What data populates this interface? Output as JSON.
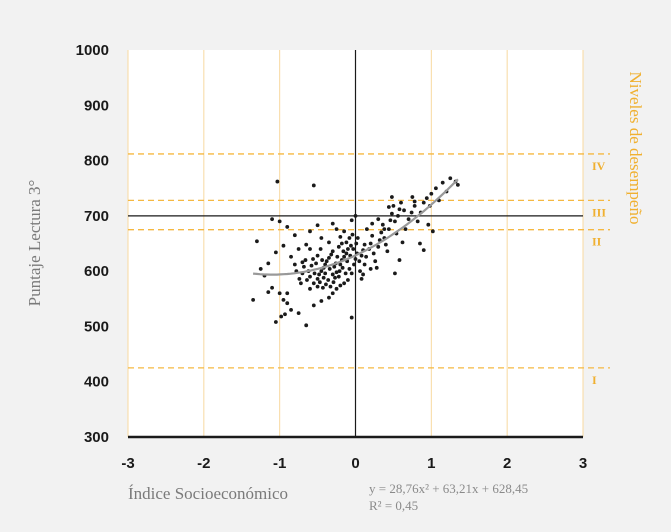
{
  "chart_data": {
    "type": "scatter",
    "xlabel": "Índice Socioeconómico",
    "ylabel": "Puntaje Lectura 3°",
    "right_label": "Niveles de desempeño",
    "xlim": [
      -3,
      3
    ],
    "ylim": [
      300,
      1000
    ],
    "x_ticks": [
      -3,
      -2,
      -1,
      0,
      1,
      2,
      3
    ],
    "y_ticks": [
      300,
      400,
      500,
      600,
      700,
      800,
      900,
      1000
    ],
    "x_tick_labels": [
      "-3",
      "-2",
      "-1",
      "0",
      "1",
      "2",
      "3"
    ],
    "y_tick_labels": [
      "300",
      "400",
      "500",
      "600",
      "700",
      "800",
      "900",
      "1000"
    ],
    "reference_lines": {
      "x": 0,
      "y": 700
    },
    "levels": [
      {
        "label": "IV",
        "y": 812
      },
      {
        "label": "III",
        "y": 728
      },
      {
        "label": "II",
        "y": 675
      },
      {
        "label": "I",
        "y": 425
      }
    ],
    "trendline": {
      "type": "polynomial",
      "coefficients": [
        28.76,
        63.21,
        628.45
      ],
      "x_range": [
        -1.35,
        1.35
      ],
      "equation": "y = 28,76x² + 63,21x + 628,45",
      "r_squared": "R² = 0,45"
    },
    "grid": {
      "vertical": true,
      "horizontal": false
    },
    "colors": {
      "points": "#1a1a1a",
      "trend": "#999999",
      "levels": "#f5b841",
      "grid": "#f8d9a0",
      "axes": "#1a1a1a",
      "background": "#ffffff"
    },
    "points": [
      [
        -1.03,
        762
      ],
      [
        -0.55,
        755
      ],
      [
        -1.1,
        694
      ],
      [
        -1.0,
        690
      ],
      [
        -0.9,
        680
      ],
      [
        -0.8,
        665
      ],
      [
        -0.6,
        672
      ],
      [
        -0.5,
        683
      ],
      [
        -0.3,
        686
      ],
      [
        -0.25,
        676
      ],
      [
        -0.15,
        672
      ],
      [
        -0.05,
        692
      ],
      [
        -0.45,
        660
      ],
      [
        -0.35,
        652
      ],
      [
        -0.65,
        648
      ],
      [
        -0.75,
        640
      ],
      [
        -0.85,
        626
      ],
      [
        -0.95,
        646
      ],
      [
        -1.05,
        634
      ],
      [
        -1.15,
        614
      ],
      [
        -1.2,
        592
      ],
      [
        -1.25,
        604
      ],
      [
        -1.3,
        654
      ],
      [
        -1.35,
        548
      ],
      [
        -1.15,
        562
      ],
      [
        -1.1,
        570
      ],
      [
        -1.0,
        560
      ],
      [
        -0.95,
        548
      ],
      [
        -0.9,
        542
      ],
      [
        -0.85,
        530
      ],
      [
        -0.75,
        524
      ],
      [
        -0.65,
        502
      ],
      [
        -1.05,
        508
      ],
      [
        -0.98,
        518
      ],
      [
        -0.93,
        522
      ],
      [
        -0.55,
        538
      ],
      [
        -0.45,
        546
      ],
      [
        -0.35,
        552
      ],
      [
        -0.3,
        560
      ],
      [
        -0.25,
        568
      ],
      [
        -0.2,
        574
      ],
      [
        -0.15,
        578
      ],
      [
        -0.1,
        584
      ],
      [
        -0.05,
        516
      ],
      [
        -0.6,
        568
      ],
      [
        -0.55,
        578
      ],
      [
        -0.5,
        586
      ],
      [
        -0.48,
        594
      ],
      [
        -0.45,
        600
      ],
      [
        -0.42,
        606
      ],
      [
        -0.4,
        612
      ],
      [
        -0.38,
        618
      ],
      [
        -0.35,
        624
      ],
      [
        -0.32,
        630
      ],
      [
        -0.3,
        636
      ],
      [
        -0.28,
        608
      ],
      [
        -0.25,
        598
      ],
      [
        -0.22,
        590
      ],
      [
        -0.2,
        612
      ],
      [
        -0.18,
        620
      ],
      [
        -0.15,
        626
      ],
      [
        -0.12,
        632
      ],
      [
        -0.1,
        640
      ],
      [
        -0.08,
        604
      ],
      [
        -0.05,
        596
      ],
      [
        -0.02,
        612
      ],
      [
        0.0,
        622
      ],
      [
        0.02,
        632
      ],
      [
        0.05,
        618
      ],
      [
        0.08,
        628
      ],
      [
        0.1,
        638
      ],
      [
        0.12,
        612
      ],
      [
        -0.7,
        596
      ],
      [
        -0.68,
        608
      ],
      [
        -0.66,
        620
      ],
      [
        -0.62,
        600
      ],
      [
        -0.58,
        610
      ],
      [
        -0.56,
        622
      ],
      [
        -0.52,
        614
      ],
      [
        -0.5,
        628
      ],
      [
        -0.46,
        640
      ],
      [
        -0.44,
        620
      ],
      [
        -0.42,
        588
      ],
      [
        -0.4,
        596
      ],
      [
        -0.36,
        584
      ],
      [
        -0.34,
        604
      ],
      [
        -0.3,
        594
      ],
      [
        -0.26,
        614
      ],
      [
        -0.24,
        626
      ],
      [
        -0.22,
        644
      ],
      [
        -0.18,
        650
      ],
      [
        -0.16,
        636
      ],
      [
        -0.12,
        652
      ],
      [
        -0.08,
        660
      ],
      [
        -0.06,
        646
      ],
      [
        -0.04,
        666
      ],
      [
        -0.8,
        612
      ],
      [
        -0.78,
        600
      ],
      [
        -0.74,
        586
      ],
      [
        -0.72,
        578
      ],
      [
        -0.7,
        616
      ],
      [
        -0.64,
        584
      ],
      [
        -0.6,
        590
      ],
      [
        -0.54,
        596
      ],
      [
        -0.5,
        572
      ],
      [
        -0.47,
        580
      ],
      [
        -0.43,
        570
      ],
      [
        -0.39,
        576
      ],
      [
        -0.33,
        572
      ],
      [
        -0.29,
        580
      ],
      [
        -0.27,
        588
      ],
      [
        -0.21,
        600
      ],
      [
        -0.17,
        606
      ],
      [
        -0.13,
        596
      ],
      [
        -0.11,
        618
      ],
      [
        -0.07,
        628
      ],
      [
        -0.03,
        640
      ],
      [
        0.01,
        650
      ],
      [
        0.03,
        660
      ],
      [
        0.06,
        600
      ],
      [
        0.1,
        594
      ],
      [
        0.14,
        626
      ],
      [
        0.18,
        640
      ],
      [
        0.2,
        650
      ],
      [
        0.22,
        664
      ],
      [
        0.24,
        632
      ],
      [
        0.26,
        618
      ],
      [
        0.28,
        606
      ],
      [
        0.3,
        644
      ],
      [
        0.32,
        656
      ],
      [
        0.34,
        670
      ],
      [
        0.36,
        684
      ],
      [
        0.38,
        660
      ],
      [
        0.4,
        648
      ],
      [
        0.42,
        636
      ],
      [
        0.44,
        676
      ],
      [
        0.46,
        692
      ],
      [
        0.48,
        704
      ],
      [
        0.5,
        718
      ],
      [
        0.52,
        690
      ],
      [
        0.54,
        668
      ],
      [
        0.56,
        700
      ],
      [
        0.58,
        712
      ],
      [
        0.6,
        724
      ],
      [
        0.15,
        676
      ],
      [
        0.22,
        686
      ],
      [
        0.3,
        694
      ],
      [
        0.38,
        676
      ],
      [
        0.44,
        716
      ],
      [
        0.48,
        734
      ],
      [
        0.52,
        596
      ],
      [
        0.58,
        620
      ],
      [
        0.62,
        652
      ],
      [
        0.66,
        676
      ],
      [
        0.7,
        694
      ],
      [
        0.74,
        706
      ],
      [
        0.78,
        718
      ],
      [
        0.82,
        690
      ],
      [
        0.86,
        706
      ],
      [
        0.9,
        724
      ],
      [
        0.94,
        732
      ],
      [
        0.98,
        718
      ],
      [
        1.0,
        740
      ],
      [
        1.02,
        672
      ],
      [
        0.96,
        684
      ],
      [
        0.9,
        638
      ],
      [
        0.85,
        650
      ],
      [
        0.78,
        726
      ],
      [
        1.06,
        750
      ],
      [
        1.15,
        760
      ],
      [
        1.25,
        768
      ],
      [
        1.32,
        762
      ],
      [
        1.35,
        756
      ],
      [
        1.2,
        744
      ],
      [
        1.1,
        728
      ],
      [
        0.75,
        734
      ],
      [
        0.64,
        710
      ],
      [
        0.12,
        648
      ],
      [
        0.2,
        604
      ],
      [
        0.0,
        700
      ],
      [
        -0.2,
        662
      ],
      [
        0.08,
        586
      ],
      [
        -0.6,
        640
      ],
      [
        -0.9,
        560
      ]
    ]
  }
}
